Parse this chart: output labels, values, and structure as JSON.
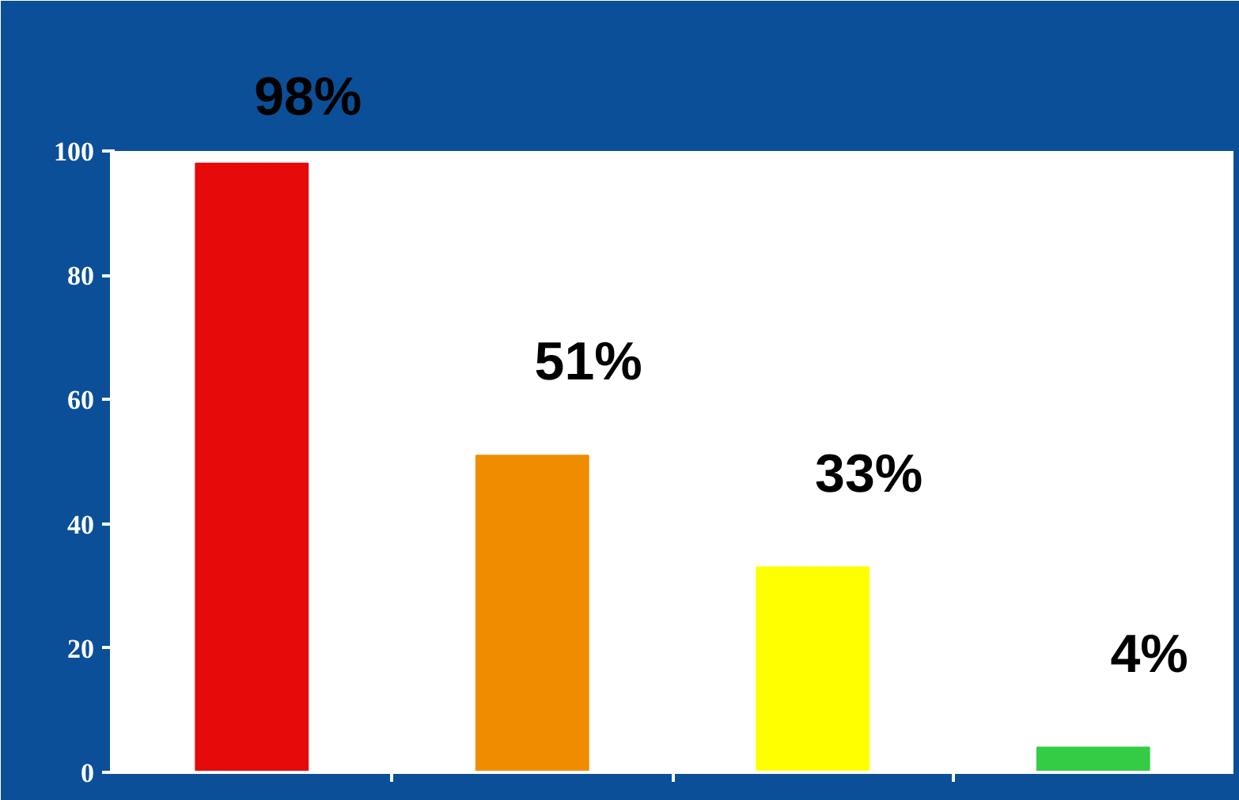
{
  "chart_data": {
    "type": "bar",
    "categories": [
      null,
      null,
      null,
      null
    ],
    "values": [
      98,
      51,
      33,
      4
    ],
    "colors": [
      "#e60a0a",
      "#f08c00",
      "#ffff00",
      "#33cc44"
    ],
    "value_labels": [
      "98%",
      "51%",
      "33%",
      "4%"
    ],
    "ylim": [
      0,
      100
    ],
    "yticks": [
      0,
      20,
      40,
      60,
      80,
      100
    ],
    "grid": false,
    "tick_labels": "y"
  }
}
